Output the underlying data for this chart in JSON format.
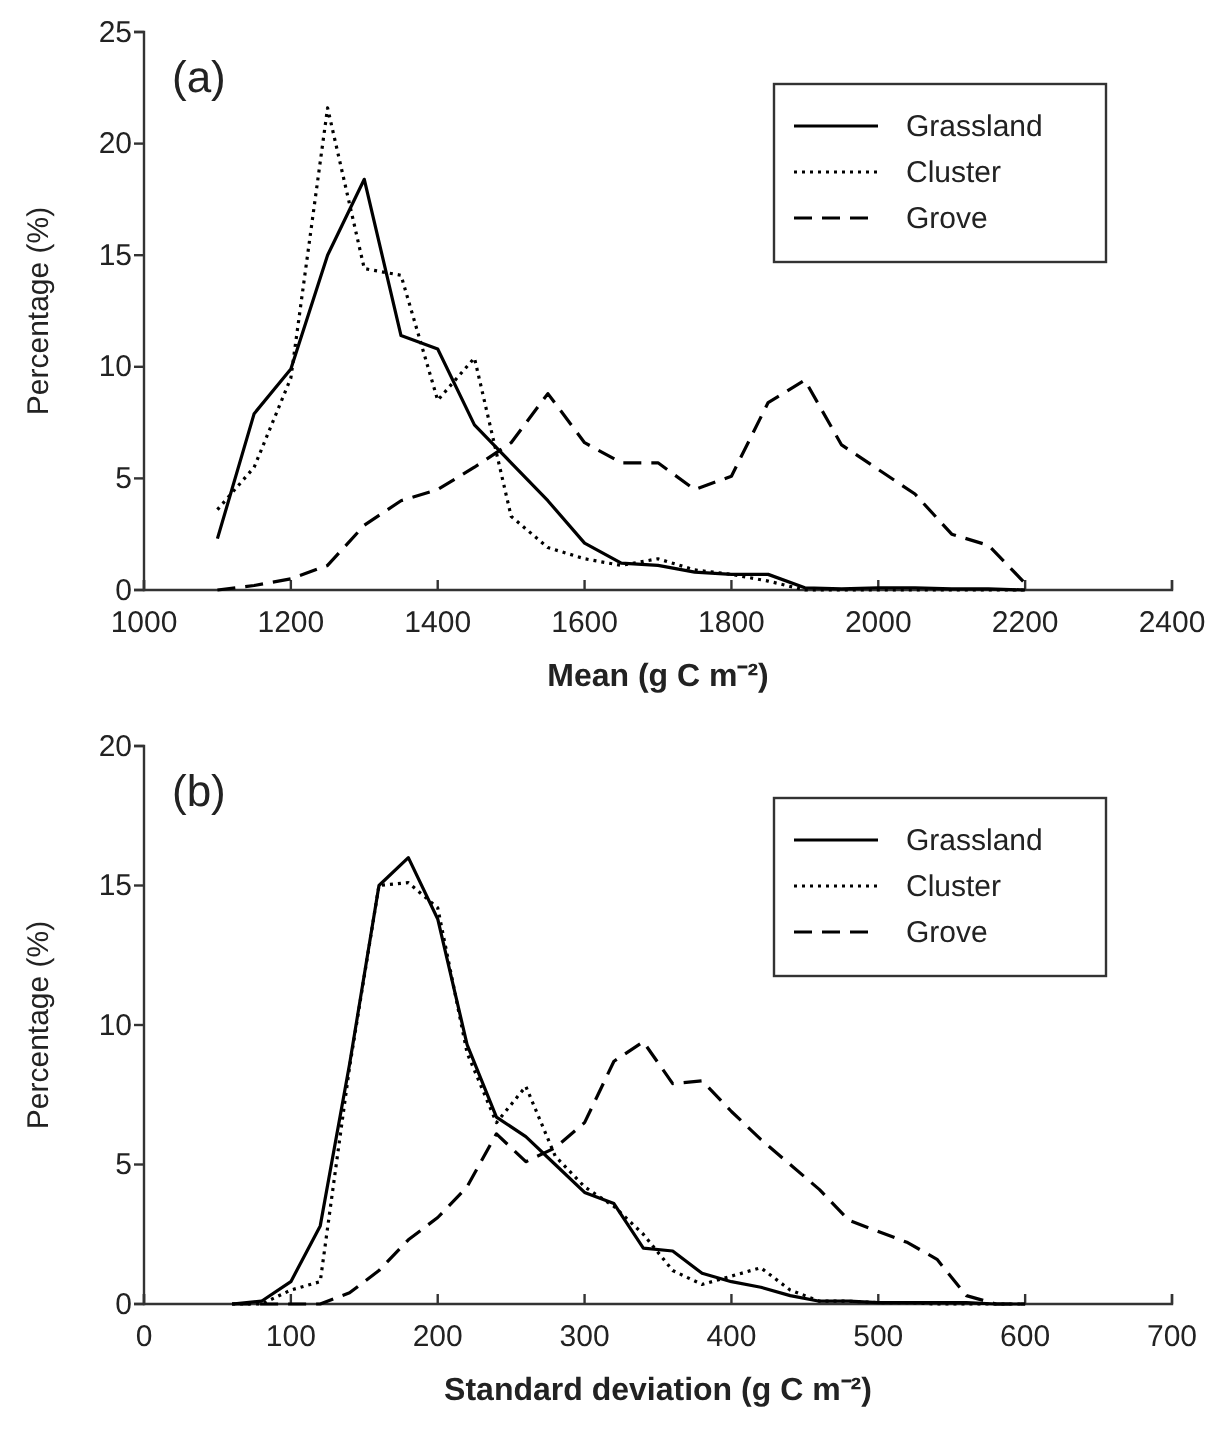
{
  "chart_data": [
    {
      "type": "line",
      "annotations": [
        "(a)"
      ],
      "xlabel": "Mean (g C m⁻²)",
      "ylabel": "Percentage (%)",
      "xlim": [
        1000,
        2400
      ],
      "xticks": [
        1000,
        1200,
        1400,
        1600,
        1800,
        2000,
        2200,
        2400
      ],
      "ylim": [
        0,
        25
      ],
      "yticks": [
        0,
        5,
        10,
        15,
        20,
        25
      ],
      "legend": "top right",
      "marker": "none",
      "grid": false,
      "x": [
        1100,
        1150,
        1200,
        1250,
        1300,
        1350,
        1400,
        1450,
        1500,
        1550,
        1600,
        1650,
        1700,
        1750,
        1800,
        1850,
        1900,
        1950,
        2000,
        2050,
        2100,
        2150,
        2200
      ],
      "series": [
        {
          "name": "Grassland",
          "color": "#000000",
          "line_style": "solid",
          "values": [
            2.3,
            7.9,
            9.9,
            15,
            18.4,
            11.4,
            10.8,
            7.4,
            5.7,
            4.0,
            2.1,
            1.2,
            1.1,
            0.8,
            0.7,
            0.7,
            0.1,
            0.05,
            0.1,
            0.1,
            0.05,
            0.05,
            0
          ]
        },
        {
          "name": "Cluster",
          "color": "#000000",
          "line_style": "dotted",
          "values": [
            3.6,
            5.5,
            9.5,
            21.6,
            14.4,
            14.1,
            8.5,
            10.4,
            3.3,
            1.9,
            1.4,
            1.1,
            1.4,
            0.9,
            0.7,
            0.4,
            0,
            0,
            0,
            0,
            0,
            0,
            0
          ]
        },
        {
          "name": "Grove",
          "color": "#000000",
          "line_style": "dashed",
          "values": [
            0,
            0.2,
            0.5,
            1.1,
            2.9,
            4.0,
            4.5,
            5.5,
            6.6,
            8.8,
            6.6,
            5.7,
            5.7,
            4.5,
            5.1,
            8.4,
            9.4,
            6.5,
            5.4,
            4.3,
            2.5,
            2.0,
            0.3
          ]
        }
      ]
    },
    {
      "type": "line",
      "annotations": [
        "(b)"
      ],
      "xlabel": "Standard deviation (g C m⁻²)",
      "ylabel": "Percentage (%)",
      "xlim": [
        0,
        700
      ],
      "xticks": [
        0,
        100,
        200,
        300,
        400,
        500,
        600,
        700
      ],
      "ylim": [
        0,
        20
      ],
      "yticks": [
        0,
        5,
        10,
        15,
        20
      ],
      "legend": "top right",
      "marker": "none",
      "grid": false,
      "x": [
        60,
        80,
        100,
        120,
        140,
        160,
        180,
        200,
        220,
        240,
        260,
        280,
        300,
        320,
        340,
        360,
        380,
        400,
        420,
        440,
        460,
        480,
        500,
        520,
        540,
        560,
        580,
        600
      ],
      "series": [
        {
          "name": "Grassland",
          "color": "#000000",
          "line_style": "solid",
          "values": [
            0,
            0.1,
            0.8,
            2.8,
            8.6,
            15,
            16,
            13.8,
            9.3,
            6.7,
            6.0,
            5.0,
            4.0,
            3.6,
            2.0,
            1.9,
            1.1,
            0.8,
            0.6,
            0.3,
            0.1,
            0.1,
            0.05,
            0.05,
            0.05,
            0.05,
            0,
            0
          ]
        },
        {
          "name": "Cluster",
          "color": "#000000",
          "line_style": "dotted",
          "values": [
            0,
            0,
            0.5,
            0.8,
            8.5,
            15,
            15.1,
            14.2,
            9.0,
            6.5,
            7.8,
            5.3,
            4.2,
            3.5,
            2.5,
            1.2,
            0.7,
            1.0,
            1.3,
            0.5,
            0.1,
            0.1,
            0.05,
            0.05,
            0,
            0,
            0,
            0
          ]
        },
        {
          "name": "Grove",
          "color": "#000000",
          "line_style": "dashed",
          "values": [
            0,
            0,
            0,
            0,
            0.4,
            1.2,
            2.3,
            3.1,
            4.2,
            6.1,
            5.1,
            5.6,
            6.5,
            8.7,
            9.4,
            7.9,
            8.0,
            6.9,
            5.9,
            5.0,
            4.1,
            3.0,
            2.6,
            2.2,
            1.6,
            0.3,
            0,
            0
          ]
        }
      ]
    }
  ]
}
